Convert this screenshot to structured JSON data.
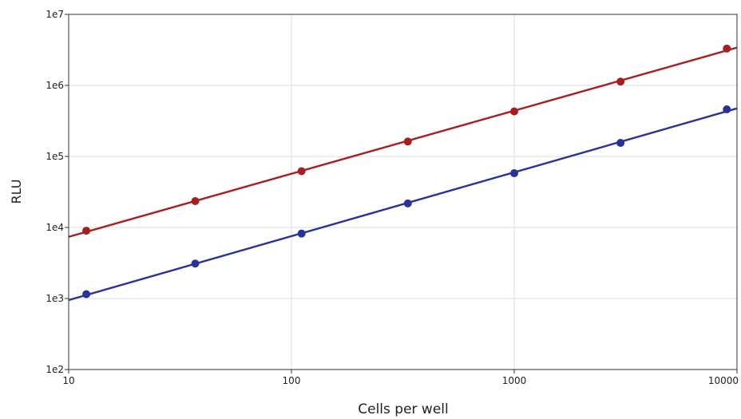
{
  "chart_data": {
    "type": "scatter",
    "xscale": "log",
    "yscale": "log",
    "xlim": [
      10,
      10000
    ],
    "ylim": [
      100,
      10000000
    ],
    "xlabel": "Cells per well",
    "ylabel": "RLU",
    "grid": true,
    "legend": "none",
    "x_ticks": [
      {
        "value": 10,
        "label": "10"
      },
      {
        "value": 100,
        "label": "100"
      },
      {
        "value": 1000,
        "label": "1000"
      },
      {
        "value": 10000,
        "label": "10000"
      }
    ],
    "y_ticks": [
      {
        "value": 100,
        "label": "1e2"
      },
      {
        "value": 1000,
        "label": "1e3"
      },
      {
        "value": 10000,
        "label": "1e4"
      },
      {
        "value": 100000,
        "label": "1e5"
      },
      {
        "value": 1000000,
        "label": "1e6"
      },
      {
        "value": 10000000,
        "label": "1e7"
      }
    ],
    "series": [
      {
        "color": "#a61e22",
        "x": [
          12,
          37,
          111,
          333,
          1000,
          3000,
          9000
        ],
        "y": [
          9000,
          23500,
          62000,
          162000,
          430000,
          1130000,
          3300000
        ],
        "fit_line": true
      },
      {
        "color": "#27339a",
        "x": [
          12,
          37,
          111,
          333,
          1000,
          3000,
          9000
        ],
        "y": [
          1150,
          3100,
          8200,
          21800,
          58000,
          155000,
          460000
        ],
        "fit_line": true
      }
    ]
  }
}
